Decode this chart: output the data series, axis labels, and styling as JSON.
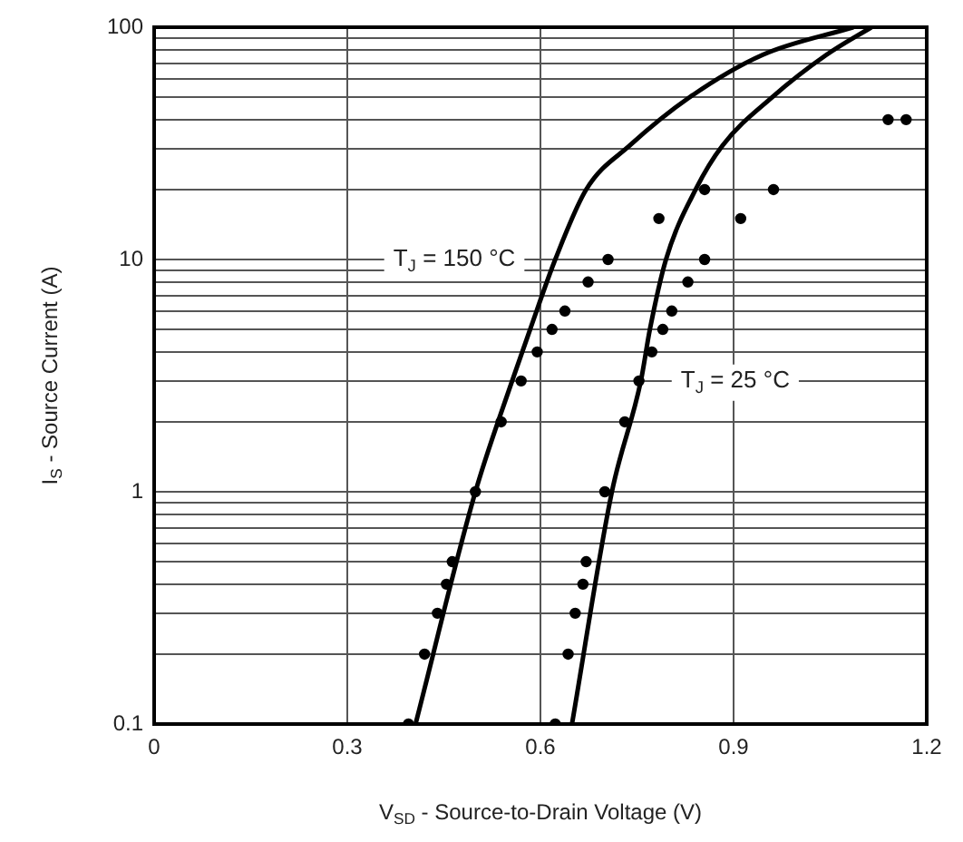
{
  "chart_data": {
    "type": "line",
    "xlabel": "V$_{SD}$ - Source-to-Drain Voltage (V)",
    "ylabel": "I$_{S}$ - Source Current (A)",
    "log": "y",
    "grid": true,
    "legend": false,
    "xlim": [
      0,
      1.2
    ],
    "xticks": [
      0,
      0.3,
      0.6,
      0.9,
      1.2
    ],
    "ylim": [
      0.1,
      100
    ],
    "yticks": [
      0.1,
      {
        "value": 0.2,
        "label": null
      },
      {
        "value": 0.3,
        "label": null
      },
      {
        "value": 0.4,
        "label": null
      },
      {
        "value": 0.5,
        "label": null
      },
      {
        "value": 0.6,
        "label": null
      },
      {
        "value": 0.7,
        "label": null
      },
      {
        "value": 0.8,
        "label": null
      },
      {
        "value": 0.9,
        "label": null
      },
      1,
      {
        "value": 2,
        "label": null
      },
      {
        "value": 3,
        "label": null
      },
      {
        "value": 4,
        "label": null
      },
      {
        "value": 5,
        "label": null
      },
      {
        "value": 6,
        "label": null
      },
      {
        "value": 7,
        "label": null
      },
      {
        "value": 8,
        "label": null
      },
      {
        "value": 9,
        "label": null
      },
      10,
      {
        "value": 20,
        "label": null
      },
      {
        "value": 30,
        "label": null
      },
      {
        "value": 40,
        "label": null
      },
      {
        "value": 50,
        "label": null
      },
      {
        "value": 60,
        "label": null
      },
      {
        "value": 70,
        "label": null
      },
      {
        "value": 80,
        "label": null
      },
      {
        "value": 90,
        "label": null
      },
      100
    ],
    "series": [
      {
        "color": "#000000",
        "marker": "none",
        "line_style": "solid",
        "x": [
          0.406,
          0.499,
          0.556,
          0.584,
          0.623,
          0.671,
          0.739,
          0.832,
          0.945,
          1.086
        ],
        "values": [
          0.1,
          1,
          3,
          5,
          10,
          20,
          31,
          50,
          76,
          100
        ]
      },
      {
        "color": "#000000",
        "marker": "none",
        "line_style": "solid",
        "x": [
          0.649,
          0.711,
          0.756,
          0.77,
          0.795,
          0.841,
          0.883,
          0.96,
          1.044,
          1.114
        ],
        "values": [
          0.1,
          1,
          3,
          5,
          10,
          20,
          31,
          50,
          76,
          100
        ]
      },
      {
        "type": "scatter",
        "color": "#000000",
        "marker": "circle",
        "x": [
          0.395,
          0.42,
          0.44,
          0.454,
          0.463,
          0.499,
          0.539,
          0.57,
          0.595,
          0.618,
          0.638,
          0.674,
          0.705,
          0.784,
          0.855,
          0.911,
          0.962,
          1.14,
          1.168,
          0.623,
          0.643,
          0.654,
          0.666,
          0.671,
          0.7,
          0.731,
          0.753,
          0.773,
          0.79,
          0.804,
          0.829,
          0.855
        ],
        "values": [
          0.1,
          0.2,
          0.3,
          0.4,
          0.5,
          1,
          2,
          3,
          4,
          5,
          6,
          8,
          10,
          15,
          20,
          15,
          20,
          40,
          40,
          0.1,
          0.2,
          0.3,
          0.4,
          0.5,
          1,
          2,
          3,
          4,
          5,
          6,
          8,
          10
        ]
      }
    ],
    "annotations": [
      {
        "text": "T$_{J}$ = 150 °C",
        "x": 0.623,
        "y": 10
      },
      {
        "text": "T$_{J}$ = 25 °C",
        "x": 0.756,
        "y": 3
      }
    ]
  }
}
